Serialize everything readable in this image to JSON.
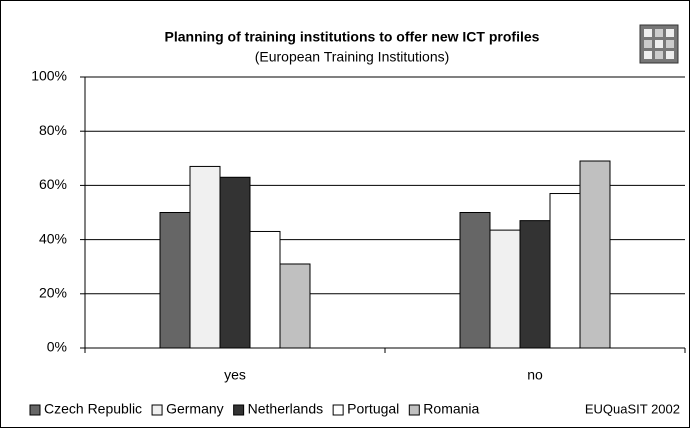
{
  "chart_data": {
    "type": "bar",
    "title": "Planning of training institutions to offer new ICT profiles",
    "subtitle": "(European Training Institutions)",
    "source": "EUQuaSIT 2002",
    "categories": [
      "yes",
      "no"
    ],
    "series": [
      {
        "name": "Czech Republic",
        "color": "#666666",
        "values": [
          50,
          50
        ]
      },
      {
        "name": "Germany",
        "color": "#f0f0f0",
        "values": [
          67,
          43.5
        ]
      },
      {
        "name": "Netherlands",
        "color": "#333333",
        "values": [
          63,
          47
        ]
      },
      {
        "name": "Portugal",
        "color": "#ffffff",
        "values": [
          43,
          57
        ]
      },
      {
        "name": "Romania",
        "color": "#c0c0c0",
        "values": [
          31,
          69
        ]
      }
    ],
    "ylim": [
      0,
      100
    ],
    "yticks": [
      {
        "value": 0,
        "label": "0%"
      },
      {
        "value": 20,
        "label": "20%"
      },
      {
        "value": 40,
        "label": "40%"
      },
      {
        "value": 60,
        "label": "60%"
      },
      {
        "value": 80,
        "label": "80%"
      },
      {
        "value": 100,
        "label": "100%"
      }
    ],
    "grid": true,
    "legend": "bottom"
  }
}
